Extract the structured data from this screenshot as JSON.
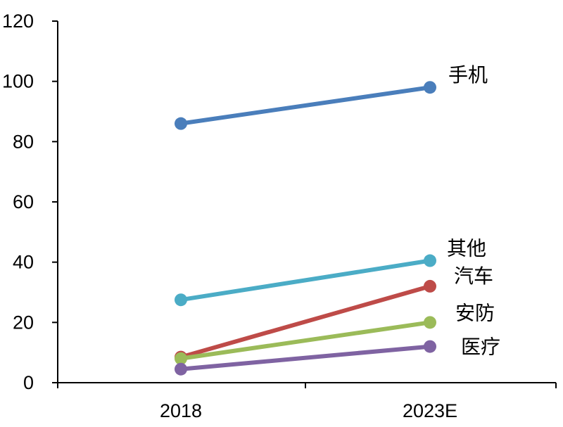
{
  "chart_data": {
    "type": "line",
    "title": "",
    "xlabel": "",
    "ylabel": "",
    "categories": [
      "2018",
      "2023E"
    ],
    "ylim": [
      0,
      120
    ],
    "yticks": [
      0,
      20,
      40,
      60,
      80,
      100,
      120
    ],
    "grid": false,
    "legend": "none (series labeled at line ends)",
    "series": [
      {
        "name": "手机",
        "values": [
          86,
          98
        ],
        "color": "#4a7ebb"
      },
      {
        "name": "其他",
        "values": [
          27.5,
          40.5
        ],
        "color": "#4bacc6"
      },
      {
        "name": "汽车",
        "values": [
          8.5,
          32
        ],
        "color": "#be4b48"
      },
      {
        "name": "安防",
        "values": [
          8,
          20
        ],
        "color": "#9bbb59"
      },
      {
        "name": "医疗",
        "values": [
          4.5,
          12
        ],
        "color": "#7f63a2"
      }
    ]
  }
}
